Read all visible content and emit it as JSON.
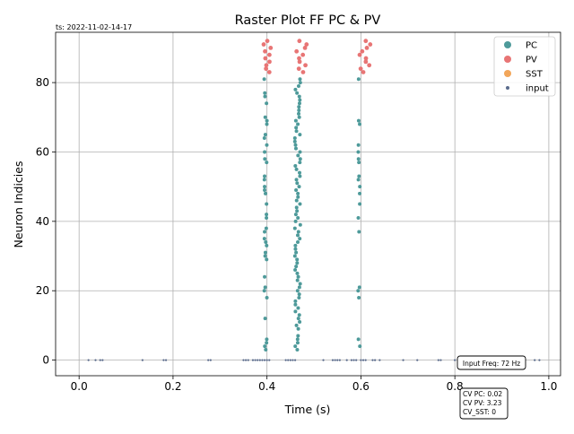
{
  "chart_data": {
    "type": "scatter",
    "title": "Raster Plot FF PC & PV",
    "timestamp_label": "ts: 2022-11-02-14-17",
    "xlabel": "Time (s)",
    "ylabel": "Neuron Indicies",
    "xlim": [
      -0.05,
      1.025
    ],
    "ylim": [
      -4.5,
      94.5
    ],
    "xticks": [
      0.0,
      0.2,
      0.4,
      0.6,
      0.8,
      1.0
    ],
    "xtick_labels": [
      "0.0",
      "0.2",
      "0.4",
      "0.6",
      "0.8",
      "1.0"
    ],
    "yticks": [
      0,
      20,
      40,
      60,
      80
    ],
    "ytick_labels": [
      "0",
      "20",
      "40",
      "60",
      "80"
    ],
    "grid": true,
    "legend_position": "top-right",
    "legend": [
      {
        "label": "PC",
        "color": "#4e9a9a",
        "marker": "large"
      },
      {
        "label": "PV",
        "color": "#e87575",
        "marker": "large"
      },
      {
        "label": "SST",
        "color": "#f2a65a",
        "marker": "large"
      },
      {
        "label": "input",
        "color": "#5a6b8c",
        "marker": "small"
      }
    ],
    "annotation_freq": "Input Freq: 72 Hz",
    "annotation_cv": [
      "CV PC: 0.02",
      "CV PV: 3.23",
      "CV_SST: 0"
    ],
    "series": [
      {
        "name": "PC",
        "color": "#4e9a9a",
        "bursts": [
          {
            "x": 0.397,
            "jitter": 0.003,
            "indices": [
              3,
              4,
              5,
              6,
              12,
              18,
              20,
              21,
              24,
              29,
              30,
              31,
              33,
              34,
              35,
              37,
              38,
              41,
              42,
              45,
              48,
              49,
              50,
              52,
              53,
              57,
              58,
              60,
              62,
              64,
              65,
              68,
              69,
              70,
              74,
              76,
              77,
              81
            ]
          },
          {
            "x": 0.465,
            "jitter": 0.006,
            "indices": [
              3,
              4,
              5,
              6,
              7,
              9,
              10,
              11,
              12,
              13,
              14,
              15,
              16,
              17,
              18,
              19,
              20,
              21,
              22,
              23,
              24,
              25,
              26,
              27,
              28,
              29,
              30,
              31,
              32,
              33,
              34,
              35,
              36,
              37,
              38,
              39,
              40,
              41,
              42,
              43,
              44,
              45,
              46,
              47,
              48,
              49,
              50,
              51,
              52,
              53,
              54,
              55,
              56,
              57,
              58,
              59,
              60,
              61,
              62,
              63,
              64,
              65,
              66,
              67,
              68,
              69,
              70,
              71,
              72,
              73,
              74,
              75,
              76,
              77,
              78,
              79,
              80,
              81
            ]
          },
          {
            "x": 0.596,
            "jitter": 0.002,
            "indices": [
              4,
              6,
              18,
              20,
              21,
              37,
              41,
              45,
              48,
              50,
              52,
              53,
              57,
              58,
              60,
              62,
              68,
              69,
              81
            ]
          }
        ]
      },
      {
        "name": "PV",
        "color": "#e87575",
        "bursts": [
          {
            "x": 0.405,
            "jitter": 0.012,
            "indices": [
              83,
              84,
              85,
              86,
              87,
              88,
              89,
              90,
              91,
              92
            ]
          },
          {
            "x": 0.474,
            "jitter": 0.012,
            "indices": [
              83,
              84,
              85,
              86,
              87,
              88,
              89,
              90,
              91,
              92
            ]
          },
          {
            "x": 0.61,
            "jitter": 0.014,
            "indices": [
              83,
              84,
              85,
              86,
              87,
              88,
              89,
              90,
              91,
              92
            ]
          }
        ]
      },
      {
        "name": "input",
        "color": "#5a6b8c",
        "y": 0,
        "x": [
          0.02,
          0.035,
          0.045,
          0.05,
          0.135,
          0.18,
          0.185,
          0.275,
          0.28,
          0.35,
          0.355,
          0.36,
          0.37,
          0.375,
          0.38,
          0.385,
          0.39,
          0.395,
          0.4,
          0.405,
          0.44,
          0.445,
          0.45,
          0.455,
          0.46,
          0.52,
          0.54,
          0.545,
          0.55,
          0.555,
          0.57,
          0.58,
          0.585,
          0.59,
          0.6,
          0.605,
          0.61,
          0.625,
          0.63,
          0.64,
          0.69,
          0.72,
          0.765,
          0.77,
          0.8,
          0.83,
          0.97,
          0.98
        ]
      }
    ]
  }
}
